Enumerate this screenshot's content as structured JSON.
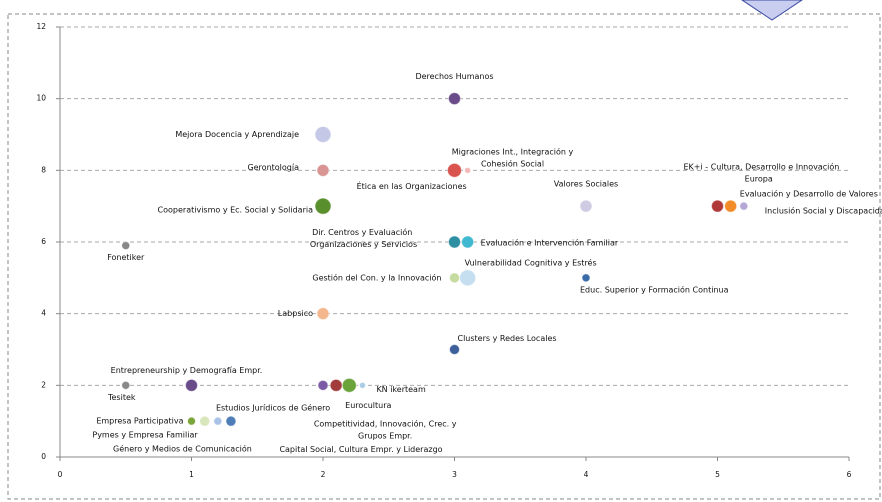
{
  "chart_data": {
    "type": "bubble",
    "labels": [
      "Derechos Humanos",
      "Mejora Docencia y Aprendizaje",
      "Gerontología",
      "Migraciones Int., Integración y Cohesión Social",
      "Ética en las Organizaciones",
      "Cooperativismo y Ec. Social y Solidaria",
      "Valores Sociales",
      "EK+i - Cultura, Desarrollo e Innovación",
      "Europa",
      "Evaluación  y Desarrollo de Valores",
      "Inclusión Social y Discapacida",
      "Dir. Centros y Evaluación  Organizaciones y Servicios",
      "Evaluación  e Intervención Familiar",
      "Fonetiker",
      "Gestión del Con. y la Innovación",
      "Vulnerabilidad Cognitiva  y Estrés",
      "Educ. Superior y Formación Continua",
      "Labpsico",
      "Clusters y Redes Locales",
      "Entrepreneurship y Demografía Empr.",
      "Tesitek",
      "Capital Social,  Cultura Empr. y Liderazgo",
      "Competitividad, Innovación, Crec. y Grupos Empr.",
      "Eurocultura",
      "KN ikerteam",
      "Empresa Participativa",
      "Pymes y Empresa Familiar",
      "Género y Medios de Comunicación",
      "Estudios Jurídicos de Género"
    ],
    "x": [
      3,
      2,
      2,
      3,
      3.1,
      2,
      4,
      5,
      5.1,
      5.2,
      5.2,
      3,
      3.1,
      0.5,
      3,
      3.1,
      4,
      2,
      3,
      1,
      0.5,
      2,
      2.1,
      2.2,
      2.3,
      1,
      1.1,
      1.2,
      1.3
    ],
    "values": [
      10,
      9,
      8,
      8,
      8,
      7,
      7,
      7,
      7,
      7,
      7,
      6,
      6,
      5.9,
      5,
      5,
      5,
      4,
      3,
      2,
      2,
      2,
      2,
      2,
      2,
      1,
      1,
      1,
      1
    ],
    "sizes": [
      6,
      8,
      6,
      7,
      3,
      8,
      6,
      6,
      6,
      4,
      4,
      6,
      6,
      4,
      5,
      8,
      4,
      6,
      5,
      6,
      4,
      5,
      6,
      7,
      3,
      4,
      5,
      4,
      5
    ],
    "colors": [
      "#6b4c8a",
      "#c5c8e6",
      "#d99494",
      "#d9534f",
      "#f2b8b8",
      "#5a8f2e",
      "#cfcbe3",
      "#b03a3a",
      "#f28c28",
      "#b4a7d6",
      "#b4a7d6",
      "#2e8fa3",
      "#3fb8d0",
      "#888888",
      "#c6dba0",
      "#c5dff0",
      "#3a6aa8",
      "#f5b78e",
      "#3d5f9a",
      "#6b4c8a",
      "#888888",
      "#7b5aa6",
      "#a23b3b",
      "#6aa33a",
      "#a9cde6",
      "#7aa53a",
      "#d8e6bc",
      "#a9c2e6",
      "#4f7db8"
    ],
    "xlim": [
      0,
      6
    ],
    "xticks": [
      0,
      1,
      2,
      3,
      4,
      5,
      6
    ],
    "ylim": [
      0,
      12
    ],
    "yticks": [
      0,
      2,
      4,
      6,
      8,
      10,
      12
    ],
    "grid": true
  }
}
